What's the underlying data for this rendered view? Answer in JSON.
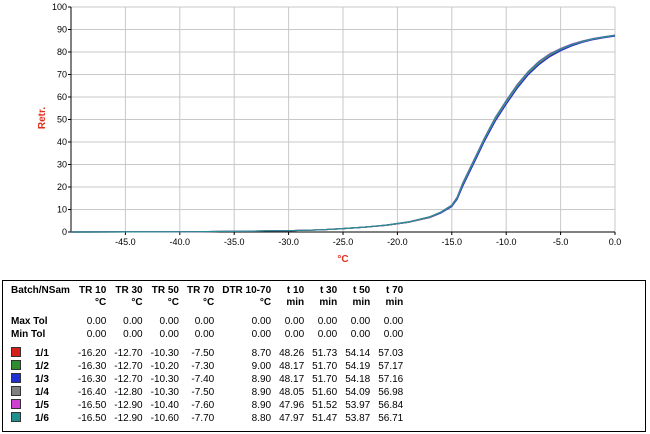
{
  "chart_data": {
    "type": "line",
    "title": "",
    "xlabel": "°C",
    "ylabel": "Retr.",
    "xlim": [
      -50,
      0
    ],
    "ylim": [
      0,
      100
    ],
    "x_ticks": [
      -45.0,
      -40.0,
      -35.0,
      -30.0,
      -25.0,
      -20.0,
      -15.0,
      -10.0,
      -5.0,
      0.0
    ],
    "x_tick_labels": [
      "-45.0",
      "-40.0",
      "-35.0",
      "-30.0",
      "-25.0",
      "-20.0",
      "-15.0",
      "-10.0",
      "-5.0",
      "0.0"
    ],
    "y_ticks": [
      0,
      10,
      20,
      30,
      40,
      50,
      60,
      70,
      80,
      90,
      100
    ],
    "grid": true,
    "x": [
      -50,
      -40,
      -35,
      -30,
      -27,
      -25,
      -23,
      -21,
      -19,
      -17,
      -16,
      -15,
      -14.5,
      -14,
      -13.5,
      -13,
      -12.5,
      -12,
      -11,
      -10,
      -9,
      -8,
      -7,
      -6,
      -5,
      -4,
      -3,
      -2,
      -1,
      0
    ],
    "series": [
      {
        "color": "#d62020",
        "values": [
          0,
          0.1,
          0.3,
          0.6,
          1.0,
          1.5,
          2.2,
          3.0,
          4.3,
          6.5,
          8.5,
          11.5,
          15,
          21,
          26,
          31,
          36,
          41,
          50,
          57.5,
          64.5,
          70.5,
          75,
          78.5,
          81,
          83,
          84.5,
          85.7,
          86.5,
          87.3
        ]
      },
      {
        "color": "#2e8b2e",
        "values": [
          0,
          0.1,
          0.3,
          0.6,
          1.0,
          1.5,
          2.2,
          3.0,
          4.3,
          6.5,
          8.5,
          11.4,
          14.8,
          20.5,
          25.5,
          30.5,
          35.5,
          40.5,
          49.5,
          57,
          64,
          70,
          74.5,
          78,
          80.7,
          82.8,
          84.4,
          85.6,
          86.5,
          87.2
        ]
      },
      {
        "color": "#1f2fd0",
        "values": [
          0,
          0.1,
          0.3,
          0.6,
          1.0,
          1.5,
          2.2,
          3.0,
          4.3,
          6.5,
          8.5,
          11.3,
          14.6,
          20.3,
          25.3,
          30.3,
          35.3,
          40.3,
          49.3,
          56.8,
          63.8,
          69.8,
          74.3,
          77.9,
          80.6,
          82.7,
          84.3,
          85.5,
          86.4,
          87.1
        ]
      },
      {
        "color": "#808080",
        "values": [
          0,
          0.1,
          0.3,
          0.6,
          1.0,
          1.5,
          2.2,
          3.0,
          4.3,
          6.6,
          8.7,
          11.7,
          15.2,
          21.2,
          26.2,
          31.2,
          36.2,
          41.2,
          50.2,
          57.7,
          64.7,
          70.7,
          75.2,
          78.7,
          81.2,
          83.2,
          84.6,
          85.8,
          86.6,
          87.4
        ]
      },
      {
        "color": "#d040d0",
        "values": [
          0,
          0.1,
          0.3,
          0.6,
          1.0,
          1.5,
          2.2,
          3.1,
          4.5,
          6.8,
          8.9,
          12,
          15.6,
          21.8,
          26.8,
          31.8,
          36.8,
          41.8,
          51,
          58.5,
          65.5,
          71.3,
          75.8,
          79.2,
          81.6,
          83.5,
          84.9,
          86,
          86.8,
          87.5
        ]
      },
      {
        "color": "#208f8f",
        "values": [
          0,
          0.1,
          0.3,
          0.6,
          1.0,
          1.5,
          2.2,
          3.1,
          4.5,
          6.8,
          8.9,
          11.9,
          15.4,
          21.6,
          26.6,
          31.6,
          36.6,
          41.6,
          50.8,
          58.3,
          65.3,
          71.1,
          75.6,
          79,
          81.4,
          83.3,
          84.8,
          85.9,
          86.7,
          87.4
        ]
      }
    ]
  },
  "table": {
    "headers": [
      {
        "line1": "Batch/NSam",
        "line2": ""
      },
      {
        "line1": "TR 10",
        "line2": "°C"
      },
      {
        "line1": "TR 30",
        "line2": "°C"
      },
      {
        "line1": "TR 50",
        "line2": "°C"
      },
      {
        "line1": "TR 70",
        "line2": "°C"
      },
      {
        "line1": "DTR 10-70",
        "line2": "°C"
      },
      {
        "line1": "t 10",
        "line2": "min"
      },
      {
        "line1": "t 30",
        "line2": "min"
      },
      {
        "line1": "t 50",
        "line2": "min"
      },
      {
        "line1": "t 70",
        "line2": "min"
      }
    ],
    "tolerances": [
      {
        "label": "Max Tol",
        "values": [
          "0.00",
          "0.00",
          "0.00",
          "0.00",
          "0.00",
          "0.00",
          "0.00",
          "0.00",
          "0.00"
        ]
      },
      {
        "label": "Min Tol",
        "values": [
          "0.00",
          "0.00",
          "0.00",
          "0.00",
          "0.00",
          "0.00",
          "0.00",
          "0.00",
          "0.00"
        ]
      }
    ],
    "rows": [
      {
        "label": "1/1",
        "color": "#d62020",
        "values": [
          "-16.20",
          "-12.70",
          "-10.30",
          "-7.50",
          "8.70",
          "48.26",
          "51.73",
          "54.14",
          "57.03"
        ]
      },
      {
        "label": "1/2",
        "color": "#2e8b2e",
        "values": [
          "-16.30",
          "-12.70",
          "-10.20",
          "-7.30",
          "9.00",
          "48.17",
          "51.70",
          "54.19",
          "57.17"
        ]
      },
      {
        "label": "1/3",
        "color": "#1f2fd0",
        "values": [
          "-16.30",
          "-12.70",
          "-10.30",
          "-7.40",
          "8.90",
          "48.17",
          "51.70",
          "54.18",
          "57.16"
        ]
      },
      {
        "label": "1/4",
        "color": "#808080",
        "values": [
          "-16.40",
          "-12.80",
          "-10.30",
          "-7.50",
          "8.90",
          "48.05",
          "51.60",
          "54.09",
          "56.98"
        ]
      },
      {
        "label": "1/5",
        "color": "#d040d0",
        "values": [
          "-16.50",
          "-12.90",
          "-10.40",
          "-7.60",
          "8.90",
          "47.96",
          "51.52",
          "53.97",
          "56.84"
        ]
      },
      {
        "label": "1/6",
        "color": "#208f8f",
        "values": [
          "-16.50",
          "-12.90",
          "-10.60",
          "-7.70",
          "8.80",
          "47.97",
          "51.47",
          "53.87",
          "56.71"
        ]
      }
    ]
  }
}
